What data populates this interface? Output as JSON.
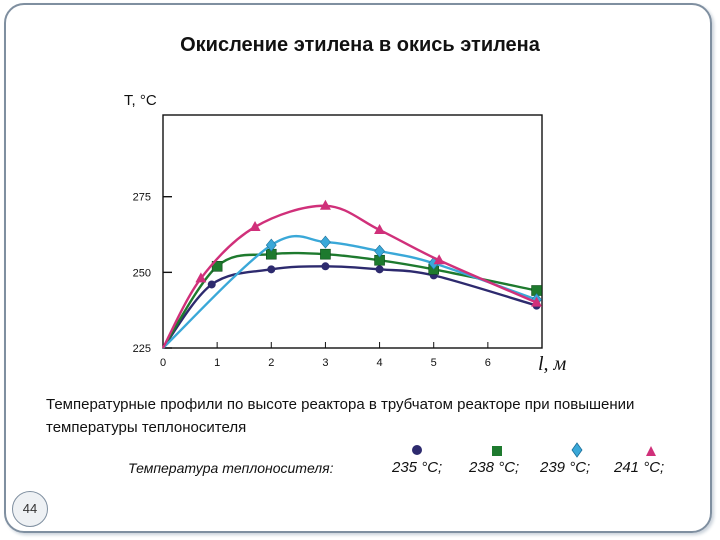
{
  "page": {
    "title": "Окисление этилена в окись этилена",
    "caption": "Температурные профили по высоте реактора в трубчатом реакторе при повышении температуры теплоносителя",
    "page_number": "44"
  },
  "legend": {
    "title": "Температура теплоносителя:",
    "items": [
      {
        "label": "235 °С;",
        "color": "#2d2a6e",
        "marker": "circle"
      },
      {
        "label": "238 °С;",
        "color": "#1e7a2e",
        "marker": "square"
      },
      {
        "label": "239 °С;",
        "color": "#3aa8d8",
        "marker": "diamond"
      },
      {
        "label": "241 °С;",
        "color": "#d0307a",
        "marker": "triangle"
      }
    ]
  },
  "chart_data": {
    "type": "line",
    "ylabel": "T, °C",
    "xlabel": "l, м",
    "xlim": [
      0,
      7
    ],
    "ylim": [
      225,
      302
    ],
    "x_ticks": [
      0,
      1,
      2,
      3,
      4,
      5,
      6
    ],
    "y_ticks": [
      225,
      250,
      275
    ],
    "series": [
      {
        "name": "235 °С;",
        "color": "#2d2a6e",
        "marker": "circle",
        "x": [
          0,
          0.9,
          2,
          3,
          4,
          5,
          6.9
        ],
        "y": [
          222,
          246,
          251,
          252,
          251,
          249,
          239
        ]
      },
      {
        "name": "238 °С;",
        "color": "#1e7a2e",
        "marker": "square",
        "x": [
          0,
          1,
          2,
          3,
          4,
          5,
          6.9
        ],
        "y": [
          222,
          252,
          256,
          256,
          254,
          251,
          244
        ]
      },
      {
        "name": "239 °С;",
        "color": "#3aa8d8",
        "marker": "diamond",
        "x": [
          0,
          2,
          3,
          4,
          5,
          6.9
        ],
        "y": [
          222,
          259,
          260,
          257,
          253,
          241
        ]
      },
      {
        "name": "241 °С;",
        "color": "#d0307a",
        "marker": "triangle",
        "x": [
          0,
          0.7,
          1.7,
          3,
          4,
          5.1,
          6.9
        ],
        "y": [
          222,
          248,
          265,
          272,
          264,
          254,
          240
        ]
      }
    ]
  }
}
